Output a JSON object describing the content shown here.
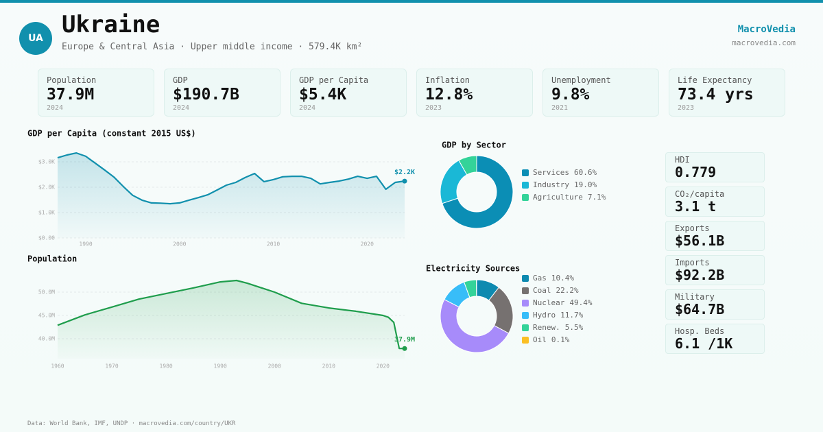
{
  "header": {
    "badge": "UA",
    "title": "Ukraine",
    "subtitle": "Europe & Central Asia · Upper middle income · 579.4K km²",
    "brand": "MacroVedia",
    "url": "macrovedia.com"
  },
  "stats": [
    {
      "label": "Population",
      "value": "37.9M",
      "year": "2024"
    },
    {
      "label": "GDP",
      "value": "$190.7B",
      "year": "2024"
    },
    {
      "label": "GDP per Capita",
      "value": "$5.4K",
      "year": "2024"
    },
    {
      "label": "Inflation",
      "value": "12.8%",
      "year": "2023"
    },
    {
      "label": "Unemployment",
      "value": "9.8%",
      "year": "2021"
    },
    {
      "label": "Life Expectancy",
      "value": "73.4 yrs",
      "year": "2023"
    }
  ],
  "side_stats": [
    {
      "label": "HDI",
      "value": "0.779"
    },
    {
      "label": "CO₂/capita",
      "value": "3.1 t"
    },
    {
      "label": "Exports",
      "value": "$56.1B"
    },
    {
      "label": "Imports",
      "value": "$92.2B"
    },
    {
      "label": "Military",
      "value": "$64.7B"
    },
    {
      "label": "Hosp. Beds",
      "value": "6.1 /1K"
    }
  ],
  "footer": "Data: World Bank, IMF, UNDP · macrovedia.com/country/UKR",
  "chart_data": [
    {
      "type": "line",
      "title": "GDP per Capita (constant 2015 US$)",
      "color": "#1190ad",
      "x": [
        1987,
        1988,
        1989,
        1990,
        1991,
        1992,
        1993,
        1994,
        1995,
        1996,
        1997,
        1998,
        1999,
        2000,
        2001,
        2002,
        2003,
        2004,
        2005,
        2006,
        2007,
        2008,
        2009,
        2010,
        2011,
        2012,
        2013,
        2014,
        2015,
        2016,
        2017,
        2018,
        2019,
        2020,
        2021,
        2022,
        2023,
        2024
      ],
      "values": [
        3160,
        3270,
        3350,
        3220,
        2950,
        2680,
        2400,
        2030,
        1680,
        1490,
        1380,
        1370,
        1350,
        1380,
        1490,
        1590,
        1700,
        1890,
        2080,
        2190,
        2380,
        2540,
        2220,
        2300,
        2410,
        2430,
        2430,
        2350,
        2130,
        2190,
        2240,
        2320,
        2430,
        2350,
        2430,
        1920,
        2190,
        2240
      ],
      "last_value_label": "$2.2K",
      "xlim": [
        1987,
        2024
      ],
      "xticks": [
        1990,
        2000,
        2010,
        2020
      ],
      "ylim": [
        0,
        3500
      ],
      "yticks": [
        {
          "value": 0,
          "label": "$0.00"
        },
        {
          "value": 1000,
          "label": "$1.0K"
        },
        {
          "value": 2000,
          "label": "$2.0K"
        },
        {
          "value": 3000,
          "label": "$3.0K"
        }
      ],
      "grid": true
    },
    {
      "type": "line",
      "title": "Population",
      "color": "#1f9d4c",
      "x": [
        1960,
        1965,
        1970,
        1975,
        1980,
        1985,
        1990,
        1993,
        1995,
        2000,
        2005,
        2010,
        2015,
        2020,
        2021,
        2022,
        2023,
        2024
      ],
      "values": [
        42900000,
        45100000,
        46800000,
        48500000,
        49700000,
        50900000,
        52200000,
        52500000,
        51900000,
        50000000,
        47600000,
        46600000,
        45900000,
        45000000,
        44600000,
        43500000,
        37900000,
        37900000
      ],
      "last_value_label": "37.9M",
      "xlim": [
        1960,
        2024
      ],
      "xticks": [
        1960,
        1970,
        1980,
        1990,
        2000,
        2010,
        2020
      ],
      "ylim": [
        35700000,
        53800000
      ],
      "yticks": [
        {
          "value": 40000000,
          "label": "40.0M"
        },
        {
          "value": 45000000,
          "label": "45.0M"
        },
        {
          "value": 50000000,
          "label": "50.0M"
        }
      ],
      "grid": true
    },
    {
      "type": "donut",
      "title": "GDP by Sector",
      "categories": [
        "Services",
        "Industry",
        "Agriculture"
      ],
      "values": [
        60.6,
        19.0,
        7.1
      ],
      "value_labels": [
        "60.6%",
        "19.0%",
        "7.1%"
      ],
      "colors": [
        "#0b8eb5",
        "#1ab8d6",
        "#34d399"
      ]
    },
    {
      "type": "donut",
      "title": "Electricity Sources",
      "categories": [
        "Gas",
        "Coal",
        "Nuclear",
        "Hydro",
        "Renew.",
        "Oil"
      ],
      "values": [
        10.4,
        22.2,
        49.4,
        11.7,
        5.5,
        0.1
      ],
      "value_labels": [
        "10.4%",
        "22.2%",
        "49.4%",
        "11.7%",
        "5.5%",
        "0.1%"
      ],
      "colors": [
        "#0e8ab0",
        "#767170",
        "#a78bfa",
        "#38bdf8",
        "#34d399",
        "#fbbf24"
      ]
    }
  ]
}
